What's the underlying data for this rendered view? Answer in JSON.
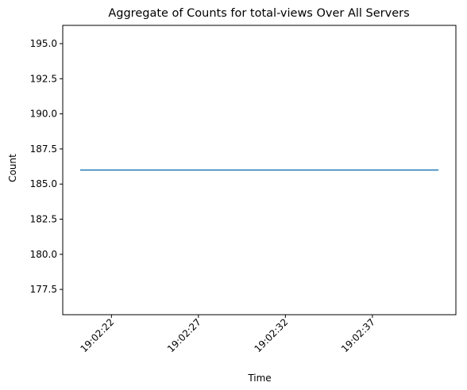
{
  "chart_data": {
    "type": "line",
    "title": "Aggregate of Counts for total-views Over All Servers",
    "xlabel": "Time",
    "ylabel": "Count",
    "x_range": [
      "19:02:19.2",
      "19:02:41.8"
    ],
    "xticks": [
      "19:02:22",
      "19:02:27",
      "19:02:32",
      "19:02:37"
    ],
    "ylim": [
      175.7,
      196.3
    ],
    "yticks": [
      "177.5",
      "180.0",
      "182.5",
      "185.0",
      "187.5",
      "190.0",
      "192.5",
      "195.0"
    ],
    "grid": false,
    "series": [
      {
        "color": "#1f77b4",
        "x": [
          "19:02:20.2",
          "19:02:40.8"
        ],
        "y": [
          186,
          186
        ]
      }
    ]
  }
}
